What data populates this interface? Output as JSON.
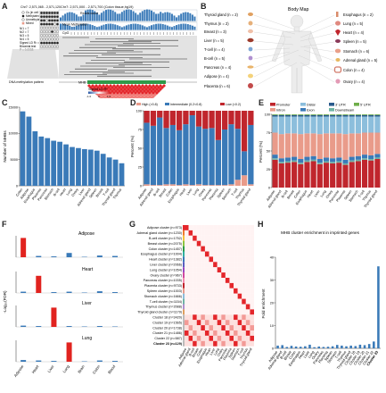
{
  "panel_labels": [
    "A",
    "B",
    "C",
    "D",
    "E",
    "F",
    "G",
    "H"
  ],
  "panelA": {
    "coord_left": "Chr7: 2,571,065 - 2,571,120",
    "coord_right": "Chr7: 2,571,000 - 2,571,700 (Colon tissue,hg19)",
    "legend": [
      "Cs (in cell lines)",
      "Methylated",
      "Unmethylated",
      "Mixed"
    ],
    "stats": [
      "N/1 = 7",
      "N/2 = 7",
      "N/3 = 5",
      "N/4 = 5"
    ],
    "signed_ld_label": "Signed LD R² = 1",
    "binomial": "Binomial test",
    "pvalue": "P = 0.0008",
    "tracks": [
      "Reads count",
      "Mean Methylation",
      "CpG"
    ],
    "gene": "MHB",
    "dna_label": "DNA methylation pattern",
    "ld_scale_label": "Signed LD R²",
    "ld_scale_ticks": [
      "-1.0",
      "0",
      "1.0"
    ]
  },
  "panelB": {
    "title": "Body Map",
    "left": [
      "Thyroid gland (n = 2)",
      "Thymus (n = 2)",
      "Breast (n = 3)",
      "Liver (n = 5)",
      "T-cell (n = 4)",
      "B-cell (n = 5)",
      "Pancreas (n = 4)",
      "Adipose (n = 4)",
      "Placenta (n = 6)"
    ],
    "right": [
      "Esophagus (n = 2)",
      "Lung (n = 5)",
      "Heart (n = 4)",
      "Spleen (n = 5)",
      "Stomach (n = 6)",
      "Adrenal gland (n = 5)",
      "Colon (n = 4)",
      "Ovary (n = 4)"
    ]
  },
  "colors": {
    "blue": "#3a7ab8",
    "red": "#c0262d",
    "salmon": "#e99b8a",
    "lightblue": "#8cbedc",
    "teal": "#6fb5a5",
    "green": "#2f9a49"
  },
  "chart_data": [
    {
      "panel": "C",
      "type": "bar",
      "ylabel": "Number of MHBs",
      "yticks": [
        "0",
        "5000",
        "10000",
        "15000"
      ],
      "ylim": [
        0,
        15000
      ],
      "categories": [
        "Colon",
        "Adipose",
        "Esophagus",
        "Placenta",
        "Pancreas",
        "Stomach",
        "B-cell",
        "Heart",
        "Lung",
        "Ovary",
        "Liver",
        "Adrenal gland",
        "Spleen",
        "Breast",
        "T-cell",
        "Thyroid gland",
        "Thymus"
      ],
      "values": [
        14200,
        13200,
        10400,
        9400,
        9100,
        8600,
        8400,
        7900,
        7400,
        7200,
        7000,
        6900,
        6700,
        6100,
        5400,
        5000,
        4300
      ]
    },
    {
      "panel": "D",
      "type": "bar",
      "ylabel": "Percent (%)",
      "yticks": [
        "0",
        "25",
        "50",
        "75",
        "100"
      ],
      "ylim": [
        0,
        100
      ],
      "legend": [
        "High (>0.8)",
        "Intermediate (0.2<0.8)",
        "Low (<0.2)"
      ],
      "categories": [
        "Adipose",
        "Adrenal gland",
        "B-cell",
        "Breast",
        "Colon",
        "Esophagus",
        "Heart",
        "Liver",
        "Lung",
        "Ovary",
        "Pancreas",
        "Placenta",
        "Spleen",
        "Stomach",
        "T-cell",
        "Thymus",
        "Thyroid gland"
      ],
      "series": [
        {
          "name": "High (>0.8)",
          "values": [
            2,
            1,
            1,
            2,
            2,
            1,
            2,
            1,
            2,
            1,
            1,
            1,
            1,
            2,
            8,
            14,
            2
          ]
        },
        {
          "name": "Intermediate (0.2<0.8)",
          "values": [
            82,
            79,
            90,
            75,
            79,
            73,
            80,
            93,
            77,
            75,
            76,
            60,
            74,
            80,
            68,
            32,
            79
          ]
        },
        {
          "name": "Low (<0.2)",
          "values": [
            16,
            20,
            9,
            23,
            19,
            26,
            18,
            6,
            21,
            24,
            23,
            39,
            25,
            18,
            24,
            54,
            19
          ]
        }
      ]
    },
    {
      "panel": "E",
      "type": "bar",
      "ylabel": "Percent (%)",
      "yticks": [
        "0",
        "25",
        "50",
        "75",
        "100"
      ],
      "ylim": [
        0,
        100
      ],
      "legend": [
        "Promoter",
        "Intron",
        "Distal",
        "Exon",
        "3' UTR",
        "Downstream",
        "5' UTR"
      ],
      "categories": [
        "Adipose",
        "Adrenal gland",
        "B-cell",
        "Breast",
        "Colon",
        "Esophagus",
        "Heart",
        "Liver",
        "Lung",
        "Ovary",
        "Pancreas",
        "Placenta",
        "Spleen",
        "Stomach",
        "T-cell",
        "Thymus",
        "Thyroid gland"
      ],
      "series": [
        {
          "name": "Promoter",
          "values": [
            38,
            33,
            34,
            35,
            32,
            35,
            36,
            32,
            34,
            33,
            34,
            31,
            35,
            36,
            38,
            37,
            39
          ]
        },
        {
          "name": "Downstream",
          "values": [
            2,
            2,
            2,
            2,
            2,
            2,
            2,
            2,
            2,
            2,
            2,
            2,
            2,
            2,
            2,
            2,
            2
          ]
        },
        {
          "name": "Exon",
          "values": [
            5,
            5,
            5,
            5,
            5,
            5,
            5,
            5,
            5,
            5,
            5,
            5,
            5,
            5,
            5,
            5,
            5
          ]
        },
        {
          "name": "Intron",
          "values": [
            30,
            33,
            33,
            32,
            34,
            32,
            31,
            34,
            33,
            34,
            33,
            35,
            32,
            31,
            30,
            31,
            29
          ]
        },
        {
          "name": "Distal",
          "values": [
            22,
            24,
            23,
            23,
            24,
            23,
            23,
            24,
            23,
            23,
            23,
            24,
            23,
            23,
            22,
            22,
            22
          ]
        },
        {
          "name": "3' UTR",
          "values": [
            2,
            2,
            2,
            2,
            2,
            2,
            2,
            2,
            2,
            2,
            2,
            2,
            2,
            2,
            2,
            2,
            2
          ]
        },
        {
          "name": "5' UTR",
          "values": [
            1,
            1,
            1,
            1,
            1,
            1,
            1,
            1,
            1,
            1,
            1,
            1,
            1,
            1,
            1,
            1,
            1
          ]
        }
      ]
    },
    {
      "panel": "F",
      "type": "bar",
      "ylabel": "-Log₁₀(FDR)",
      "categories": [
        "Adipose",
        "Heart",
        "Liver",
        "Lung",
        "Brain",
        "Colon",
        "Blood"
      ],
      "series": [
        {
          "name": "Adipose",
          "values": [
            45,
            3,
            2,
            10,
            1,
            4,
            3
          ]
        },
        {
          "name": "Heart",
          "values": [
            3,
            40,
            2,
            3,
            1,
            4,
            2
          ]
        },
        {
          "name": "Liver",
          "values": [
            3,
            2,
            45,
            2,
            1,
            2,
            1
          ]
        },
        {
          "name": "Lung",
          "values": [
            4,
            3,
            2,
            45,
            1,
            3,
            2
          ]
        }
      ],
      "highlight_color": "#e1231f"
    },
    {
      "panel": "G",
      "type": "heatmap",
      "rows": [
        "Adipose cluster (n=973)",
        "Adrenal gland cluster (n=1230)",
        "B-cell cluster (n=1752)",
        "Breast cluster (n=2075)",
        "Colon cluster (n=1457)",
        "Esophagus cluster (n=1004)",
        "Heart cluster (n=1382)",
        "Liver cluster (n=2066)",
        "Lung cluster (n=1054)",
        "Ovary cluster (n=967)",
        "Pancreas cluster (n=1035)",
        "Placenta cluster (n=9733)",
        "Spleen cluster (n=1003)",
        "Stomach cluster (n=1666)",
        "T-cell cluster (n=1154)",
        "Thymus cluster (n=2088)",
        "Thyroid gland cluster (n=1179)",
        "Cluster 18 (n=3420)",
        "Cluster 19 (n=1565)",
        "Cluster 20 (n=1738)",
        "Cluster 21 (n=1486)",
        "Cluster 22 (n=587)",
        "Cluster 23 (n=129)"
      ],
      "columns": [
        "Adipose",
        "Adrenal gland",
        "B-cell",
        "Breast",
        "Colon",
        "Esophagus",
        "Heart",
        "Liver",
        "Lung",
        "Ovary",
        "Pancreas",
        "Placenta",
        "Spleen",
        "Stomach",
        "T-cell",
        "Thymus",
        "Thyroid gland"
      ]
    },
    {
      "panel": "H",
      "type": "bar",
      "title": "MHB cluster enrichment in imprinted genes",
      "ylabel": "Fold enrichment",
      "yticks": [
        "0",
        "10",
        "20",
        "30",
        "40"
      ],
      "ylim": [
        0,
        40
      ],
      "categories": [
        "Adipose",
        "Adrenal gland",
        "B-cell",
        "Breast",
        "Colon",
        "Esophagus",
        "Heart",
        "Liver",
        "Lung",
        "Ovary",
        "Pancreas",
        "Placenta",
        "Spleen",
        "Stomach",
        "T-cell",
        "Thymus",
        "Thyroid gland",
        "Cluster 18",
        "Cluster 19",
        "Cluster 20",
        "Cluster 21",
        "Cluster 22",
        "Cluster 23"
      ],
      "values": [
        1.2,
        1.4,
        0.6,
        1.1,
        0.8,
        0.7,
        0.9,
        1.6,
        0.5,
        0.8,
        0.6,
        0.7,
        0.9,
        1.5,
        1.2,
        0.9,
        1.2,
        1.0,
        1.6,
        1.4,
        1.9,
        3.0,
        36.0
      ]
    }
  ]
}
